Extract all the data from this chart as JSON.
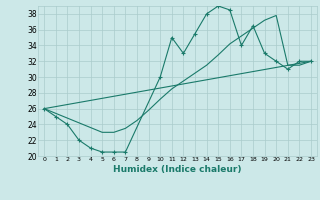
{
  "xlabel": "Humidex (Indice chaleur)",
  "bg_color": "#cce8e8",
  "grid_color": "#aacccc",
  "line_color": "#1a7a6a",
  "xlim": [
    -0.5,
    23.5
  ],
  "ylim": [
    20,
    39
  ],
  "xticks": [
    0,
    1,
    2,
    3,
    4,
    5,
    6,
    7,
    8,
    9,
    10,
    11,
    12,
    13,
    14,
    15,
    16,
    17,
    18,
    19,
    20,
    21,
    22,
    23
  ],
  "yticks": [
    20,
    22,
    24,
    26,
    28,
    30,
    32,
    34,
    36,
    38
  ],
  "line1_x": [
    0,
    1,
    2,
    3,
    4,
    5,
    6,
    7,
    10,
    11,
    12,
    13,
    14,
    15,
    16,
    17,
    18,
    19,
    20,
    21,
    22,
    23
  ],
  "line1_y": [
    26,
    25,
    24,
    22,
    21,
    20.5,
    20.5,
    20.5,
    30,
    35,
    33,
    35.5,
    38,
    39,
    38.5,
    34,
    36.5,
    33,
    32,
    31,
    32,
    32
  ],
  "line2_x": [
    0,
    1,
    2,
    3,
    4,
    5,
    6,
    7,
    8,
    9,
    10,
    11,
    12,
    13,
    14,
    15,
    16,
    17,
    18,
    19,
    20,
    21,
    22,
    23
  ],
  "line2_y": [
    26,
    25.4,
    24.8,
    24.2,
    23.6,
    23.0,
    23.0,
    23.5,
    24.5,
    25.8,
    27.2,
    28.5,
    29.5,
    30.5,
    31.5,
    32.8,
    34.2,
    35.2,
    36.2,
    37.2,
    37.8,
    31.5,
    31.5,
    32
  ],
  "line3_x": [
    0,
    23
  ],
  "line3_y": [
    26,
    32
  ]
}
